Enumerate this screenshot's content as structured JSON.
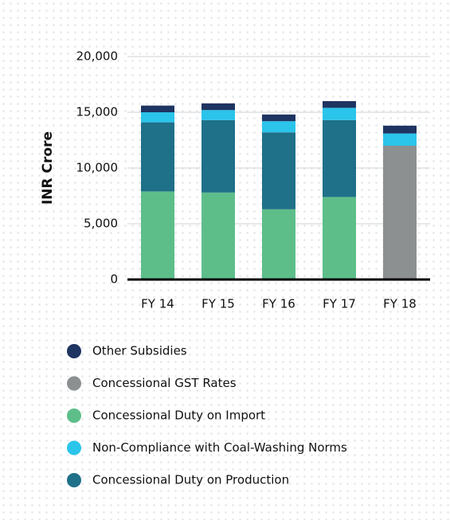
{
  "chart_data": {
    "type": "bar",
    "stacked": true,
    "y_label": "INR Crore",
    "categories": [
      "FY 14",
      "FY 15",
      "FY 16",
      "FY 17",
      "FY 18"
    ],
    "series": [
      {
        "name": "Other Subsidies",
        "color": "#1e3461",
        "values": [
          600,
          600,
          600,
          600,
          700
        ]
      },
      {
        "name": "Concessional GST Rates",
        "color": "#8c9091",
        "values": [
          null,
          null,
          null,
          null,
          12000
        ]
      },
      {
        "name": "Concessional Duty on Import",
        "color": "#5dbe8a",
        "values": [
          7900,
          7800,
          6300,
          7400,
          null
        ]
      },
      {
        "name": "Non-Compliance with Coal-Washing Norms",
        "color": "#2bc4ea",
        "values": [
          900,
          900,
          1000,
          1100,
          1100
        ]
      },
      {
        "name": "Concessional Duty on Production",
        "color": "#1f7089",
        "values": [
          6200,
          6500,
          6900,
          6900,
          null
        ]
      }
    ],
    "ylim": [
      0,
      20000
    ],
    "yticks": [
      0,
      {
        "value": 5000,
        "label": "5,000"
      },
      {
        "value": 10000,
        "label": "10,000"
      },
      {
        "value": 15000,
        "label": "15,000"
      },
      {
        "value": 20000,
        "label": "20,000"
      }
    ],
    "grid": true
  }
}
